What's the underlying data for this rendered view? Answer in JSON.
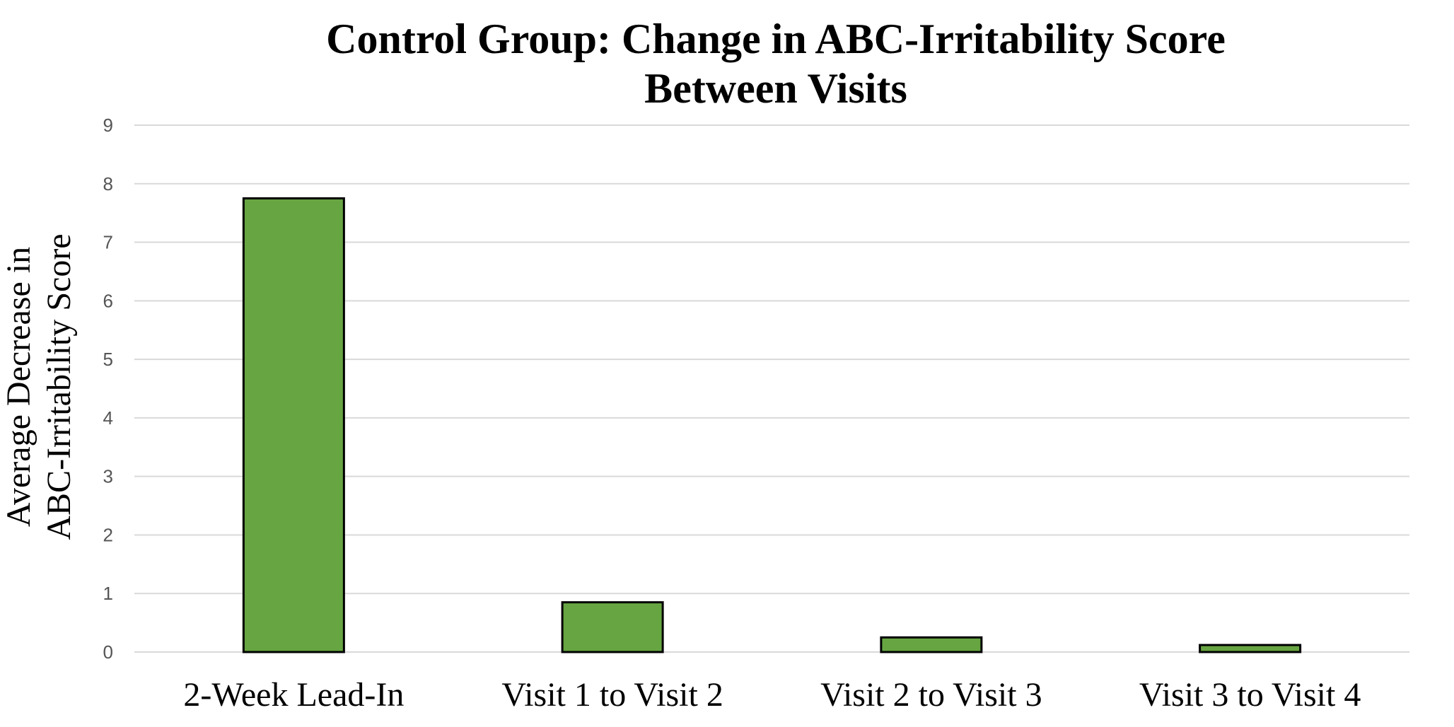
{
  "colors": {
    "bar_fill": "#67a542",
    "bar_stroke": "#000000",
    "grid": "#d9d9d9"
  },
  "chart_data": {
    "type": "bar",
    "title_lines": [
      "Control Group: Change in ABC-Irritability Score",
      "Between Visits"
    ],
    "ylabel_lines": [
      "Average Decrease in",
      "ABC-Irritability Score"
    ],
    "xlabel": "",
    "categories": [
      "2-Week Lead-In",
      "Visit 1 to Visit 2",
      "Visit 2 to Visit 3",
      "Visit 3 to Visit 4"
    ],
    "values": [
      7.75,
      0.85,
      0.25,
      0.12
    ],
    "ylim": [
      0,
      9
    ],
    "yticks": [
      "0",
      "1",
      "2",
      "3",
      "4",
      "5",
      "6",
      "7",
      "8",
      "9"
    ],
    "grid": true,
    "legend": "none"
  }
}
